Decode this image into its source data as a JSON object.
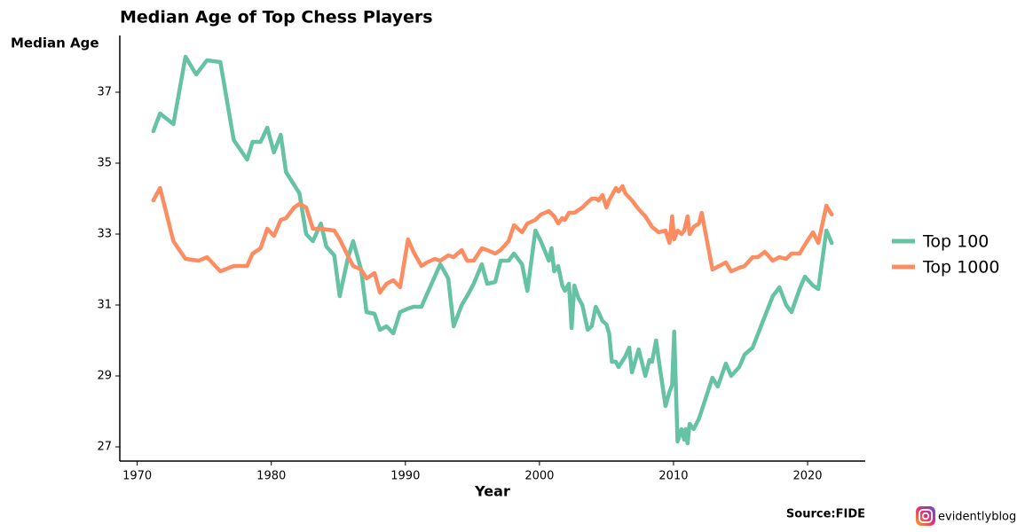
{
  "chart_data": {
    "type": "line",
    "title": "Median Age of Top Chess Players",
    "y_label": "Median Age",
    "x_label": "Year",
    "source": "Source:FIDE",
    "credit": "evidentlyblog",
    "xlim": [
      1968.7,
      2024.3
    ],
    "ylim": [
      26.6,
      38.6
    ],
    "xticks": [
      1970,
      1980,
      1990,
      2000,
      2010,
      2020
    ],
    "yticks": [
      27,
      29,
      31,
      33,
      35,
      37
    ],
    "grid": false,
    "legend": "right",
    "series": [
      {
        "name": "Top 100",
        "color": "#66c2a5",
        "x": [
          1971.2,
          1971.7,
          1972.7,
          1973.6,
          1974.4,
          1975.2,
          1976.2,
          1977.2,
          1978.2,
          1978.6,
          1979.2,
          1979.7,
          1980.2,
          1980.7,
          1981.1,
          1982.1,
          1982.6,
          1983.1,
          1983.7,
          1984.1,
          1984.7,
          1985.1,
          1985.7,
          1986.1,
          1986.7,
          1987.1,
          1987.7,
          1988.1,
          1988.6,
          1989.1,
          1989.6,
          1990.2,
          1990.6,
          1991.2,
          1991.6,
          1992.6,
          1993.2,
          1993.6,
          1994.2,
          1994.6,
          1995.1,
          1995.7,
          1996.1,
          1996.7,
          1997.1,
          1997.7,
          1998.1,
          1998.7,
          1999.1,
          1999.7,
          2000.1,
          2000.7,
          2000.9,
          2001.1,
          2001.4,
          2001.7,
          2001.9,
          2002.2,
          2002.4,
          2002.6,
          2002.9,
          2003.2,
          2003.6,
          2003.9,
          2004.2,
          2004.4,
          2004.7,
          2005.0,
          2005.2,
          2005.4,
          2005.7,
          2005.9,
          2006.4,
          2006.7,
          2006.9,
          2007.4,
          2007.9,
          2008.2,
          2008.4,
          2008.7,
          2008.9,
          2009.4,
          2009.7,
          2009.9,
          2010.05,
          2010.3,
          2010.6,
          2010.8,
          2010.9,
          2011.05,
          2011.2,
          2011.5,
          2011.9,
          2012.9,
          2013.3,
          2013.9,
          2014.3,
          2014.9,
          2015.3,
          2015.9,
          2017.4,
          2017.9,
          2018.4,
          2018.8,
          2019.4,
          2019.8,
          2020.4,
          2020.8,
          2021.4,
          2021.8
        ],
        "values": [
          35.9,
          36.4,
          36.1,
          38.0,
          37.5,
          37.9,
          37.85,
          35.65,
          35.1,
          35.6,
          35.6,
          36.0,
          35.3,
          35.8,
          34.75,
          34.15,
          33.0,
          32.8,
          33.3,
          32.65,
          32.4,
          31.25,
          32.3,
          32.8,
          32.0,
          30.8,
          30.75,
          30.3,
          30.4,
          30.2,
          30.8,
          30.9,
          30.95,
          30.95,
          31.3,
          32.15,
          31.75,
          30.4,
          31.0,
          31.25,
          31.6,
          32.15,
          31.6,
          31.65,
          32.25,
          32.25,
          32.45,
          32.15,
          31.4,
          33.1,
          32.8,
          32.25,
          32.6,
          31.95,
          32.1,
          31.55,
          31.4,
          31.6,
          30.35,
          31.55,
          31.2,
          31.0,
          30.3,
          30.4,
          30.95,
          30.8,
          30.55,
          30.45,
          30.2,
          29.4,
          29.4,
          29.25,
          29.55,
          29.8,
          29.1,
          29.75,
          29.0,
          29.45,
          29.4,
          30.0,
          29.45,
          28.15,
          28.55,
          28.75,
          30.25,
          27.15,
          27.5,
          27.2,
          27.5,
          27.1,
          27.65,
          27.5,
          27.8,
          28.95,
          28.7,
          29.35,
          29.0,
          29.25,
          29.6,
          29.8,
          31.25,
          31.5,
          31.0,
          30.8,
          31.45,
          31.8,
          31.55,
          31.45,
          33.1,
          32.75
        ]
      },
      {
        "name": "Top 1000",
        "color": "#fc8d62",
        "x": [
          1971.2,
          1971.7,
          1972.7,
          1973.6,
          1974.6,
          1975.2,
          1976.2,
          1977.2,
          1978.2,
          1978.6,
          1979.2,
          1979.7,
          1980.2,
          1980.7,
          1981.1,
          1981.7,
          1982.1,
          1982.6,
          1983.1,
          1983.7,
          1984.7,
          1985.1,
          1985.7,
          1986.1,
          1986.7,
          1987.1,
          1987.7,
          1988.1,
          1988.6,
          1989.1,
          1989.6,
          1990.2,
          1990.6,
          1991.2,
          1991.6,
          1992.2,
          1992.6,
          1993.2,
          1993.6,
          1994.2,
          1994.6,
          1995.1,
          1995.7,
          1996.1,
          1996.7,
          1997.1,
          1997.7,
          1998.1,
          1998.7,
          1999.1,
          1999.7,
          2000.1,
          2000.7,
          2001.1,
          2001.4,
          2001.7,
          2001.9,
          2002.2,
          2002.6,
          2003.2,
          2003.6,
          2003.9,
          2004.2,
          2004.4,
          2004.7,
          2005.0,
          2005.2,
          2005.7,
          2005.9,
          2006.2,
          2006.4,
          2006.9,
          2007.4,
          2007.9,
          2008.4,
          2008.9,
          2009.4,
          2009.7,
          2009.9,
          2010.05,
          2010.3,
          2010.6,
          2010.8,
          2011.05,
          2011.2,
          2011.5,
          2011.9,
          2012.1,
          2012.9,
          2013.9,
          2014.3,
          2014.9,
          2015.3,
          2015.9,
          2016.3,
          2016.8,
          2017.4,
          2017.9,
          2018.4,
          2018.8,
          2019.4,
          2019.8,
          2020.4,
          2020.8,
          2021.4,
          2021.8
        ],
        "values": [
          33.95,
          34.3,
          32.8,
          32.3,
          32.25,
          32.35,
          31.95,
          32.1,
          32.1,
          32.45,
          32.6,
          33.15,
          32.95,
          33.4,
          33.45,
          33.75,
          33.85,
          33.75,
          33.15,
          33.15,
          33.1,
          32.85,
          32.4,
          32.1,
          32.0,
          31.75,
          31.9,
          31.35,
          31.6,
          31.7,
          31.5,
          32.85,
          32.5,
          32.1,
          32.2,
          32.3,
          32.25,
          32.4,
          32.35,
          32.55,
          32.25,
          32.25,
          32.6,
          32.55,
          32.45,
          32.55,
          32.8,
          33.25,
          33.05,
          33.3,
          33.4,
          33.55,
          33.65,
          33.5,
          33.3,
          33.45,
          33.4,
          33.6,
          33.6,
          33.75,
          33.9,
          34.0,
          34.0,
          33.95,
          34.1,
          33.75,
          33.95,
          34.3,
          34.2,
          34.35,
          34.15,
          33.95,
          33.7,
          33.5,
          33.2,
          33.05,
          33.1,
          32.75,
          33.5,
          32.85,
          33.1,
          33.0,
          33.1,
          33.5,
          33.0,
          33.2,
          33.3,
          33.6,
          32.0,
          32.2,
          31.95,
          32.05,
          32.1,
          32.35,
          32.35,
          32.5,
          32.25,
          32.35,
          32.3,
          32.45,
          32.45,
          32.7,
          33.05,
          32.75,
          33.8,
          33.55
        ]
      }
    ]
  }
}
